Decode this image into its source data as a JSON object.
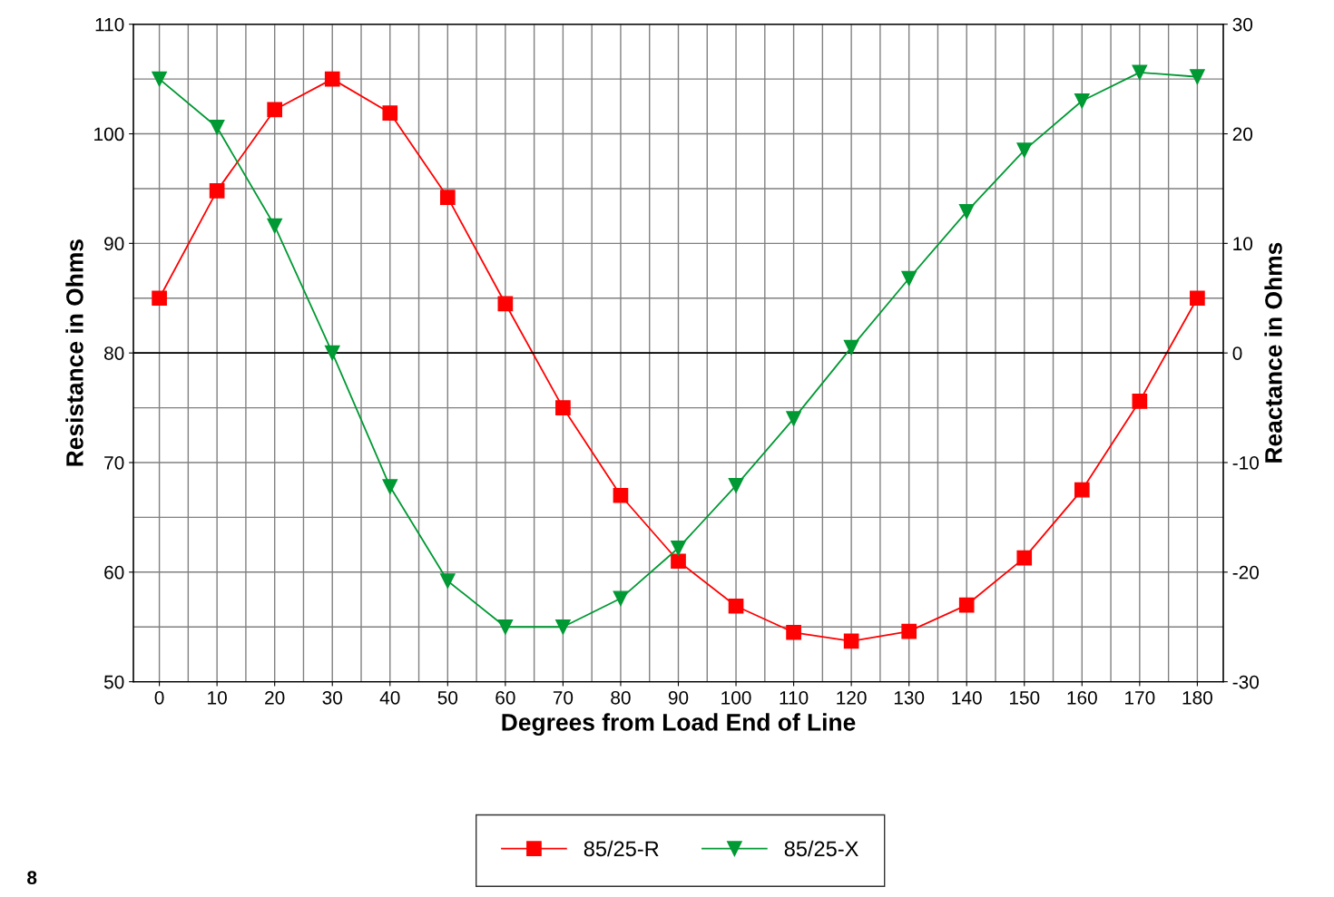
{
  "chart_data": {
    "type": "line",
    "xlabel": "Degrees from Load End of Line",
    "ylabel": "Resistance in Ohms",
    "y2label": "Reactance in Ohms",
    "categories": [
      "0",
      "10",
      "20",
      "30",
      "40",
      "50",
      "60",
      "70",
      "80",
      "90",
      "100",
      "110",
      "120",
      "130",
      "140",
      "150",
      "160",
      "170",
      "180"
    ],
    "series": [
      {
        "name": "85/25-R",
        "color": "#ff0000",
        "marker": "square",
        "values": [
          85,
          94.8,
          102.2,
          105,
          101.9,
          94.2,
          84.5,
          75,
          67,
          61,
          56.9,
          54.5,
          53.7,
          54.6,
          57,
          61.3,
          67.5,
          75.6,
          85
        ]
      },
      {
        "name": "85/25-X",
        "color": "#009933",
        "marker": "triangle",
        "axis": "y2",
        "values": [
          25,
          20.6,
          11.6,
          0,
          -12.2,
          -20.8,
          -25,
          -25,
          -22.4,
          -17.8,
          -12.1,
          -6,
          0.5,
          6.8,
          12.9,
          18.5,
          23,
          25.6,
          25.2
        ]
      }
    ],
    "ylim": [
      50,
      110
    ],
    "yticks": [
      50,
      60,
      70,
      80,
      90,
      100,
      110
    ],
    "y2lim": [
      -30,
      30
    ],
    "y2ticks": [
      -30,
      -20,
      -10,
      0,
      10,
      20,
      30
    ],
    "ref_lines": [
      {
        "axis": "y2",
        "value": 0,
        "color": "#000000"
      }
    ],
    "grid": true,
    "legend": "bottom",
    "line_style": "solid",
    "annotations": [
      "8"
    ]
  }
}
